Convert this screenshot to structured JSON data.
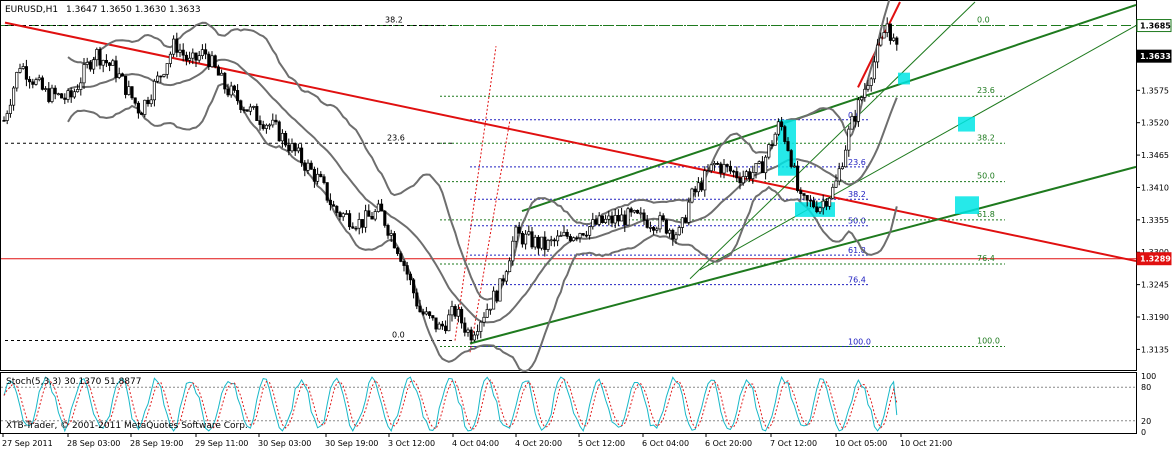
{
  "header": {
    "symbol": "EURUSD,H1",
    "ohlc": "1.3647 1.3650 1.3630 1.3633"
  },
  "price_axis": {
    "ticks": [
      "1.3575",
      "1.3520",
      "1.3465",
      "1.3410",
      "1.3355",
      "1.3300",
      "1.3245",
      "1.3190",
      "1.3135"
    ],
    "tags": [
      {
        "label": "1.3685",
        "price": 1.3685,
        "style": "hline-green"
      },
      {
        "label": "1.3633",
        "price": 1.3633,
        "style": "current"
      },
      {
        "label": "1.3289",
        "price": 1.3289,
        "style": "hline-red"
      }
    ]
  },
  "time_axis": {
    "labels": [
      "27 Sep 2011",
      "28 Sep 03:00",
      "28 Sep 19:00",
      "29 Sep 11:00",
      "30 Sep 03:00",
      "30 Sep 19:00",
      "3 Oct 12:00",
      "4 Oct 04:00",
      "4 Oct 20:00",
      "5 Oct 12:00",
      "6 Oct 04:00",
      "6 Oct 20:00",
      "7 Oct 12:00",
      "10 Oct 05:00",
      "10 Oct 21:00"
    ]
  },
  "indicator": {
    "label": "Stoch(5,3,3) 30.1370 51.8877",
    "axis_ticks": [
      "100",
      "80",
      "20",
      "0"
    ]
  },
  "footer": {
    "copyright": "XTB-Trader, © 2001-2011 MetaQuotes Software Corp."
  },
  "fib_levels": {
    "left_set": {
      "top_label": "38.2",
      "mid_label": "23.6",
      "bottom_label": "0.0"
    },
    "blue_set": [
      "0.0",
      "23.6",
      "38.2",
      "50.0",
      "61.8",
      "76.4",
      "100.0"
    ],
    "green_set": [
      "0.0",
      "23.6",
      "38.2",
      "50.0",
      "61.8",
      "76.4",
      "100.0"
    ]
  },
  "colors": {
    "candle": "#000000",
    "bollinger": "#6e6e6e",
    "trend_red": "#e01010",
    "channel_green": "#1e7a1e",
    "fib_blue": "#2020c0",
    "highlight": "#00e5e5",
    "grid": "#000000"
  },
  "chart_data": {
    "type": "candlestick",
    "symbol": "EURUSD",
    "timeframe": "H1",
    "ylim": [
      1.31,
      1.3725
    ],
    "horizontal_lines": [
      1.3685,
      1.3289
    ],
    "current_price": 1.3633,
    "close_path_anchors": [
      [
        0,
        1.35
      ],
      [
        20,
        1.362
      ],
      [
        45,
        1.357
      ],
      [
        70,
        1.356
      ],
      [
        95,
        1.364
      ],
      [
        115,
        1.361
      ],
      [
        140,
        1.354
      ],
      [
        160,
        1.36
      ],
      [
        175,
        1.3655
      ],
      [
        190,
        1.362
      ],
      [
        205,
        1.364
      ],
      [
        225,
        1.358
      ],
      [
        250,
        1.354
      ],
      [
        275,
        1.351
      ],
      [
        300,
        1.346
      ],
      [
        320,
        1.342
      ],
      [
        335,
        1.337
      ],
      [
        360,
        1.335
      ],
      [
        380,
        1.337
      ],
      [
        400,
        1.33
      ],
      [
        420,
        1.32
      ],
      [
        440,
        1.317
      ],
      [
        455,
        1.32
      ],
      [
        470,
        1.316
      ],
      [
        485,
        1.32
      ],
      [
        500,
        1.324
      ],
      [
        515,
        1.333
      ],
      [
        530,
        1.332
      ],
      [
        545,
        1.331
      ],
      [
        570,
        1.333
      ],
      [
        600,
        1.335
      ],
      [
        630,
        1.336
      ],
      [
        660,
        1.335
      ],
      [
        680,
        1.333
      ],
      [
        690,
        1.339
      ],
      [
        715,
        1.345
      ],
      [
        740,
        1.343
      ],
      [
        760,
        1.344
      ],
      [
        780,
        1.352
      ],
      [
        790,
        1.347
      ],
      [
        800,
        1.3385
      ],
      [
        820,
        1.338
      ],
      [
        835,
        1.341
      ],
      [
        850,
        1.351
      ],
      [
        865,
        1.358
      ],
      [
        880,
        1.365
      ],
      [
        887,
        1.369
      ],
      [
        898,
        1.3633
      ]
    ],
    "stochastic": {
      "name": "Stoch(5,3,3)",
      "main": 30.137,
      "signal": 51.8877,
      "levels": [
        80,
        20
      ],
      "ylim": [
        0,
        100
      ]
    }
  }
}
